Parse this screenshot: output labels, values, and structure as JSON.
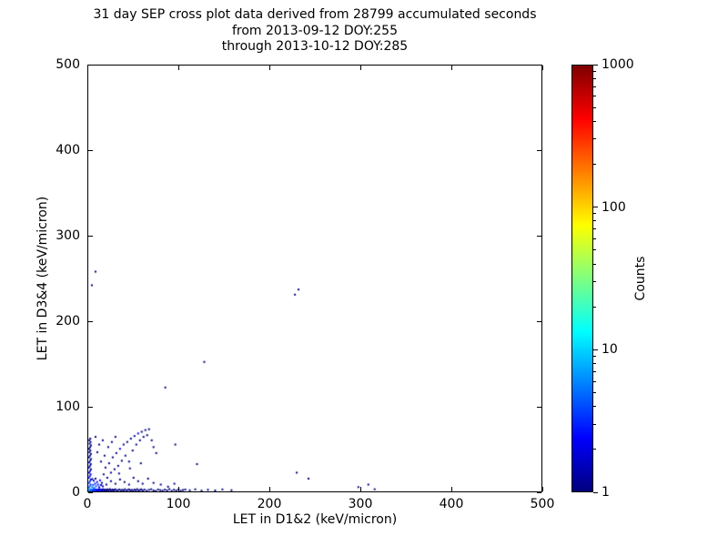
{
  "chart_data": {
    "type": "scatter",
    "title_lines": [
      "31 day SEP cross plot data derived from 28799 accumulated seconds",
      "from 2013-09-12 DOY:255",
      "through 2013-10-12 DOY:285"
    ],
    "xlabel": "LET in D1&2 (keV/micron)",
    "ylabel": "LET in D3&4 (keV/micron)",
    "xlim": [
      0,
      500
    ],
    "ylim": [
      0,
      500
    ],
    "xticks": [
      0,
      100,
      200,
      300,
      400,
      500
    ],
    "yticks": [
      0,
      100,
      200,
      300,
      400,
      500
    ],
    "grid": false,
    "legend": false,
    "marker": "pixel-square",
    "colorbar": {
      "label": "Counts",
      "scale": "log",
      "min": 1,
      "max": 1000,
      "ticks": [
        1,
        10,
        100,
        1000
      ],
      "colormap": "jet"
    },
    "points_format": [
      "x_keV_per_micron",
      "y_keV_per_micron",
      "count"
    ],
    "points": [
      [
        0.5,
        0.6,
        8
      ],
      [
        1.2,
        1.8,
        6
      ],
      [
        1.9,
        0.9,
        5
      ],
      [
        2.6,
        2.4,
        6
      ],
      [
        3.3,
        1.2,
        4
      ],
      [
        4,
        0.5,
        5
      ],
      [
        4.7,
        2,
        4
      ],
      [
        5.4,
        1,
        3
      ],
      [
        6.1,
        2.6,
        4
      ],
      [
        6.8,
        0.7,
        3
      ],
      [
        7.5,
        1.6,
        3
      ],
      [
        8.2,
        2.3,
        3
      ],
      [
        8.9,
        0.5,
        2
      ],
      [
        9.6,
        1.3,
        3
      ],
      [
        10.3,
        2.1,
        2
      ],
      [
        11,
        0.8,
        2
      ],
      [
        11.7,
        1.9,
        2
      ],
      [
        12.4,
        2.7,
        2
      ],
      [
        13.1,
        0.6,
        2
      ],
      [
        13.8,
        1.4,
        2
      ],
      [
        14.5,
        2.2,
        2
      ],
      [
        15.2,
        0.9,
        1
      ],
      [
        15.9,
        1.7,
        2
      ],
      [
        16.6,
        2.5,
        1
      ],
      [
        17.3,
        0.5,
        2
      ],
      [
        18,
        1.2,
        1
      ],
      [
        18.7,
        2,
        1
      ],
      [
        19.4,
        0.7,
        2
      ],
      [
        20.1,
        1.5,
        1
      ],
      [
        21,
        2.3,
        1
      ],
      [
        22,
        0.6,
        1
      ],
      [
        23,
        1.8,
        1
      ],
      [
        24,
        2.6,
        1
      ],
      [
        25,
        0.9,
        1
      ],
      [
        26,
        1.4,
        1
      ],
      [
        27,
        2.1,
        1
      ],
      [
        28,
        0.5,
        1
      ],
      [
        29,
        1.7,
        1
      ],
      [
        30,
        2.4,
        1
      ],
      [
        31.5,
        0.8,
        1
      ],
      [
        33,
        1.5,
        1
      ],
      [
        34.5,
        2.2,
        1
      ],
      [
        36,
        0.6,
        1
      ],
      [
        37.5,
        1.9,
        1
      ],
      [
        39,
        1.1,
        1
      ],
      [
        40.5,
        2.5,
        1
      ],
      [
        42,
        0.7,
        1
      ],
      [
        43.5,
        1.6,
        1
      ],
      [
        45,
        2.3,
        1
      ],
      [
        46.5,
        0.9,
        1
      ],
      [
        48,
        1.8,
        1
      ],
      [
        49.5,
        0.5,
        1
      ],
      [
        51,
        2.1,
        1
      ],
      [
        52.5,
        1.2,
        1
      ],
      [
        54,
        2.6,
        1
      ],
      [
        55.5,
        0.8,
        1
      ],
      [
        57,
        1.7,
        1
      ],
      [
        58.5,
        2.4,
        1
      ],
      [
        60,
        1,
        1
      ],
      [
        62,
        2,
        1
      ],
      [
        64.5,
        0.7,
        1
      ],
      [
        67,
        1.8,
        1
      ],
      [
        69.5,
        2.5,
        1
      ],
      [
        72,
        1.1,
        1
      ],
      [
        74.5,
        0.5,
        1
      ],
      [
        77,
        2.2,
        1
      ],
      [
        79.5,
        1.4,
        1
      ],
      [
        82,
        0.8,
        1
      ],
      [
        84.5,
        2,
        1
      ],
      [
        87,
        1.2,
        1
      ],
      [
        89.5,
        2.6,
        1
      ],
      [
        92,
        0.6,
        1
      ],
      [
        94.5,
        1.9,
        1
      ],
      [
        97,
        1,
        1
      ],
      [
        99.5,
        2.3,
        1
      ],
      [
        102,
        0.7,
        1
      ],
      [
        104.5,
        1.6,
        1
      ],
      [
        107,
        2.2,
        1
      ],
      [
        112,
        1.3,
        1
      ],
      [
        118,
        2.4,
        1
      ],
      [
        125,
        0.8,
        1
      ],
      [
        132,
        1.9,
        1
      ],
      [
        140,
        1.1,
        1
      ],
      [
        148,
        2.3,
        1
      ],
      [
        158,
        1.4,
        1
      ],
      [
        0.6,
        4.5,
        5
      ],
      [
        1.6,
        6,
        4
      ],
      [
        2.6,
        8,
        3
      ],
      [
        0.9,
        10,
        4
      ],
      [
        1.9,
        12,
        3
      ],
      [
        2.9,
        14,
        2
      ],
      [
        0.7,
        16,
        3
      ],
      [
        1.7,
        18,
        2
      ],
      [
        2.7,
        20,
        2
      ],
      [
        1,
        22,
        2
      ],
      [
        2,
        24,
        2
      ],
      [
        3,
        26,
        1
      ],
      [
        0.8,
        28,
        2
      ],
      [
        1.8,
        30,
        1
      ],
      [
        2.8,
        32,
        1
      ],
      [
        1.1,
        34,
        2
      ],
      [
        2.1,
        36,
        1
      ],
      [
        3.1,
        38,
        1
      ],
      [
        0.9,
        40,
        1
      ],
      [
        1.9,
        42,
        1
      ],
      [
        2.9,
        44,
        1
      ],
      [
        1.3,
        46,
        1
      ],
      [
        2.3,
        48,
        1
      ],
      [
        1,
        50,
        1
      ],
      [
        2,
        52,
        1
      ],
      [
        3,
        54,
        1
      ],
      [
        1.5,
        56,
        1
      ],
      [
        2.5,
        58,
        1
      ],
      [
        1.2,
        60,
        1
      ],
      [
        2.2,
        62,
        1
      ],
      [
        4.2,
        5,
        6
      ],
      [
        5.3,
        7.5,
        4
      ],
      [
        6.4,
        4.2,
        5
      ],
      [
        7.5,
        9,
        3
      ],
      [
        8.6,
        6,
        4
      ],
      [
        9.7,
        11,
        2
      ],
      [
        10.8,
        8,
        3
      ],
      [
        12,
        5,
        2
      ],
      [
        13,
        13,
        2
      ],
      [
        14,
        7.5,
        2
      ],
      [
        15,
        10,
        1
      ],
      [
        6,
        12.5,
        2
      ],
      [
        4.5,
        14.5,
        1
      ],
      [
        16,
        6,
        1
      ],
      [
        8,
        15,
        1
      ],
      [
        17,
        20,
        1
      ],
      [
        19,
        28,
        1
      ],
      [
        21,
        16,
        1
      ],
      [
        23,
        33,
        1
      ],
      [
        25,
        22,
        1
      ],
      [
        27,
        40,
        1
      ],
      [
        29,
        26,
        1
      ],
      [
        31,
        45,
        1
      ],
      [
        33,
        30,
        1
      ],
      [
        35,
        50,
        2
      ],
      [
        37,
        36,
        1
      ],
      [
        39,
        55,
        1
      ],
      [
        41,
        42,
        1
      ],
      [
        43,
        58,
        1
      ],
      [
        45,
        35,
        1
      ],
      [
        47,
        62,
        1
      ],
      [
        49,
        48,
        1
      ],
      [
        51,
        65,
        1
      ],
      [
        53,
        55,
        1
      ],
      [
        55,
        68,
        2
      ],
      [
        57,
        60,
        1
      ],
      [
        59,
        70,
        1
      ],
      [
        61,
        64,
        1
      ],
      [
        63,
        72,
        1
      ],
      [
        65,
        66,
        1
      ],
      [
        67,
        73,
        1
      ],
      [
        70,
        60,
        1
      ],
      [
        72,
        52,
        1
      ],
      [
        75,
        45,
        1
      ],
      [
        18,
        42,
        1
      ],
      [
        14,
        35,
        1
      ],
      [
        10,
        46,
        1
      ],
      [
        12,
        55,
        1
      ],
      [
        8,
        64,
        1
      ],
      [
        16,
        60,
        1
      ],
      [
        22,
        52,
        1
      ],
      [
        26,
        58,
        1
      ],
      [
        30,
        64,
        1
      ],
      [
        34,
        21,
        1
      ],
      [
        46,
        27,
        1
      ],
      [
        58,
        33,
        1
      ],
      [
        20,
        8,
        1
      ],
      [
        25,
        12,
        1
      ],
      [
        30,
        9,
        1
      ],
      [
        35,
        14,
        1
      ],
      [
        40,
        11,
        1
      ],
      [
        45,
        8,
        1
      ],
      [
        50,
        16,
        1
      ],
      [
        55,
        12,
        1
      ],
      [
        60,
        9,
        1
      ],
      [
        66,
        15,
        1
      ],
      [
        72,
        10,
        1
      ],
      [
        80,
        8,
        1
      ],
      [
        88,
        5.5,
        1
      ],
      [
        95,
        9,
        1
      ],
      [
        85,
        122,
        1
      ],
      [
        128,
        152,
        1
      ],
      [
        232,
        237,
        1
      ],
      [
        228,
        231,
        1
      ],
      [
        8,
        258,
        1
      ],
      [
        4,
        242,
        1
      ],
      [
        230,
        22,
        1
      ],
      [
        243,
        15,
        1
      ],
      [
        298,
        5,
        1
      ],
      [
        309,
        8,
        1
      ],
      [
        316,
        2.5,
        1
      ],
      [
        120,
        32,
        1
      ],
      [
        96,
        55,
        1
      ]
    ]
  }
}
